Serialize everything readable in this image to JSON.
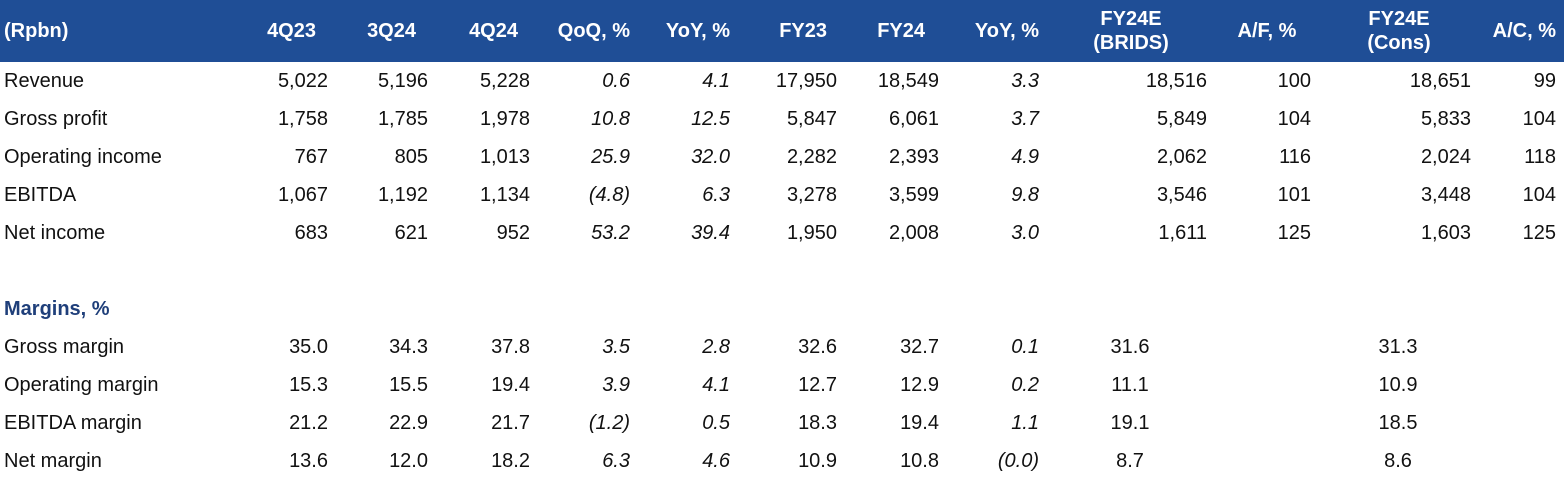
{
  "header": {
    "label": "(Rpbn)",
    "cols": [
      "4Q23",
      "3Q24",
      "4Q24",
      "QoQ, %",
      "YoY, %",
      "FY23",
      "FY24",
      "YoY, %",
      "FY24E (BRIDS)",
      "A/F, %",
      "FY24E (Cons)",
      "A/C, %"
    ],
    "brids_line1": "FY24E",
    "brids_line2": "(BRIDS)",
    "cons_line1": "FY24E",
    "cons_line2": "(Cons)"
  },
  "rows": [
    {
      "label": "Revenue",
      "values": [
        "5,022",
        "5,196",
        "5,228",
        "0.6",
        "4.1",
        "17,950",
        "18,549",
        "3.3",
        "18,516",
        "100",
        "18,651",
        "99"
      ]
    },
    {
      "label": "Gross profit",
      "values": [
        "1,758",
        "1,785",
        "1,978",
        "10.8",
        "12.5",
        "5,847",
        "6,061",
        "3.7",
        "5,849",
        "104",
        "5,833",
        "104"
      ]
    },
    {
      "label": "Operating income",
      "values": [
        "767",
        "805",
        "1,013",
        "25.9",
        "32.0",
        "2,282",
        "2,393",
        "4.9",
        "2,062",
        "116",
        "2,024",
        "118"
      ]
    },
    {
      "label": "EBITDA",
      "values": [
        "1,067",
        "1,192",
        "1,134",
        "(4.8)",
        "6.3",
        "3,278",
        "3,599",
        "9.8",
        "3,546",
        "101",
        "3,448",
        "104"
      ]
    },
    {
      "label": "Net income",
      "values": [
        "683",
        "621",
        "952",
        "53.2",
        "39.4",
        "1,950",
        "2,008",
        "3.0",
        "1,611",
        "125",
        "1,603",
        "125"
      ]
    }
  ],
  "margins_title": "Margins, %",
  "margin_rows": [
    {
      "label": "Gross margin",
      "values": [
        "35.0",
        "34.3",
        "37.8",
        "3.5",
        "2.8",
        "32.6",
        "32.7",
        "0.1",
        "31.6",
        "",
        "31.3",
        ""
      ]
    },
    {
      "label": "Operating margin",
      "values": [
        "15.3",
        "15.5",
        "19.4",
        "3.9",
        "4.1",
        "12.7",
        "12.9",
        "0.2",
        "11.1",
        "",
        "10.9",
        ""
      ]
    },
    {
      "label": "EBITDA margin",
      "values": [
        "21.2",
        "22.9",
        "21.7",
        "(1.2)",
        "0.5",
        "18.3",
        "19.4",
        "1.1",
        "19.1",
        "",
        "18.5",
        ""
      ]
    },
    {
      "label": "Net margin",
      "values": [
        "13.6",
        "12.0",
        "18.2",
        "6.3",
        "4.6",
        "10.9",
        "10.8",
        "(0.0)",
        "8.7",
        "",
        "8.6",
        ""
      ]
    }
  ],
  "colors": {
    "header_bg": "#1f4e96",
    "header_text": "#ffffff",
    "section_title": "#1f3f7a"
  }
}
